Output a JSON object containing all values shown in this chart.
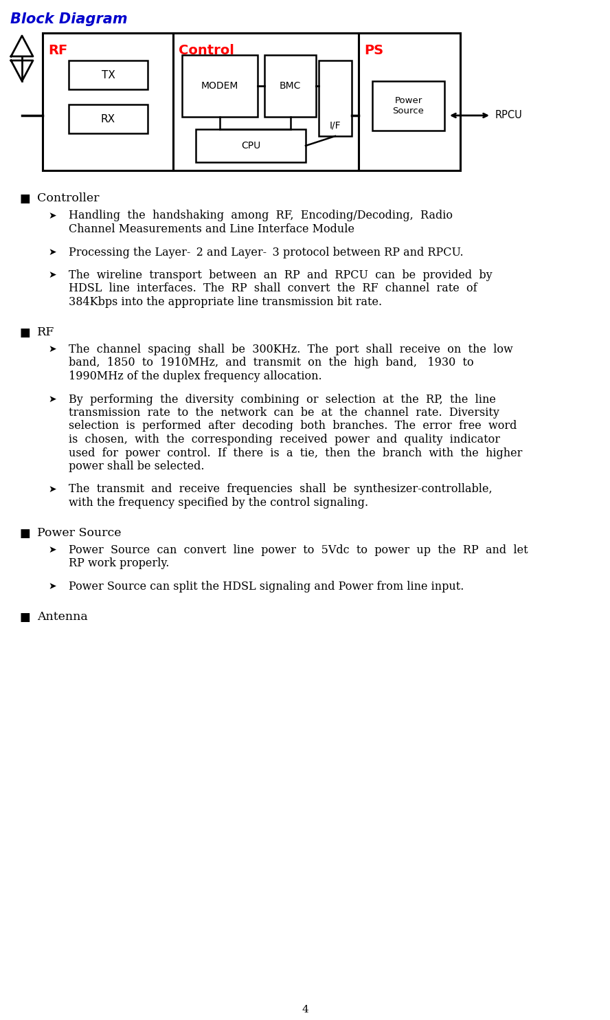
{
  "title": "Block Diagram",
  "title_color": "#0000CC",
  "title_style": "italic",
  "title_fontsize": 15,
  "background_color": "#FFFFFF",
  "diagram": {
    "rf_label": "RF",
    "ctrl_label": "Control",
    "ps_label": "PS",
    "tx_label": "TX",
    "rx_label": "RX",
    "modem_label": "MODEM",
    "bmc_label": "BMC",
    "if_label": "I/F",
    "cpu_label": "CPU",
    "psrc_label": "Power\nSource",
    "rpcu_label": "RPCU"
  },
  "bullet_sections": [
    {
      "header": "Controller",
      "items": [
        "Handling  the  handshaking  among  RF,  Encoding/Decoding,  Radio\nChannel Measurements and Line Interface Module",
        "Processing the Layer-  2 and Layer-  3 protocol between RP and RPCU.",
        "The  wireline  transport  between  an  RP  and  RPCU  can  be  provided  by\nHDSL  line  interfaces.  The  RP  shall  convert  the  RF  channel  rate  of\n384Kbps into the appropriate line transmission bit rate."
      ]
    },
    {
      "header": "RF",
      "items": [
        "The  channel  spacing  shall  be  300KHz.  The  port  shall  receive  on  the  low\nband,  1850  to  1910MHz,  and  transmit  on  the  high  band,   1930  to\n1990MHz of the duplex frequency allocation.",
        "By  performing  the  diversity  combining  or  selection  at  the  RP,  the  line\ntransmission  rate  to  the  network  can  be  at  the  channel  rate.  Diversity\nselection  is  performed  after  decoding  both  branches.  The  error  free  word\nis  chosen,  with  the  corresponding  received  power  and  quality  indicator\nused  for  power  control.  If  there  is  a  tie,  then  the  branch  with  the  higher\npower shall be selected.",
        "The  transmit  and  receive  frequencies  shall  be  synthesizer-controllable,\nwith the frequency specified by the control signaling."
      ]
    },
    {
      "header": "Power Source",
      "items": [
        "Power  Source  can  convert  line  power  to  5Vdc  to  power  up  the  RP  and  let\nRP work properly.",
        "Power Source can split the HDSL signaling and Power from line input."
      ]
    },
    {
      "header": "Antenna",
      "items": []
    }
  ],
  "page_number": "4"
}
